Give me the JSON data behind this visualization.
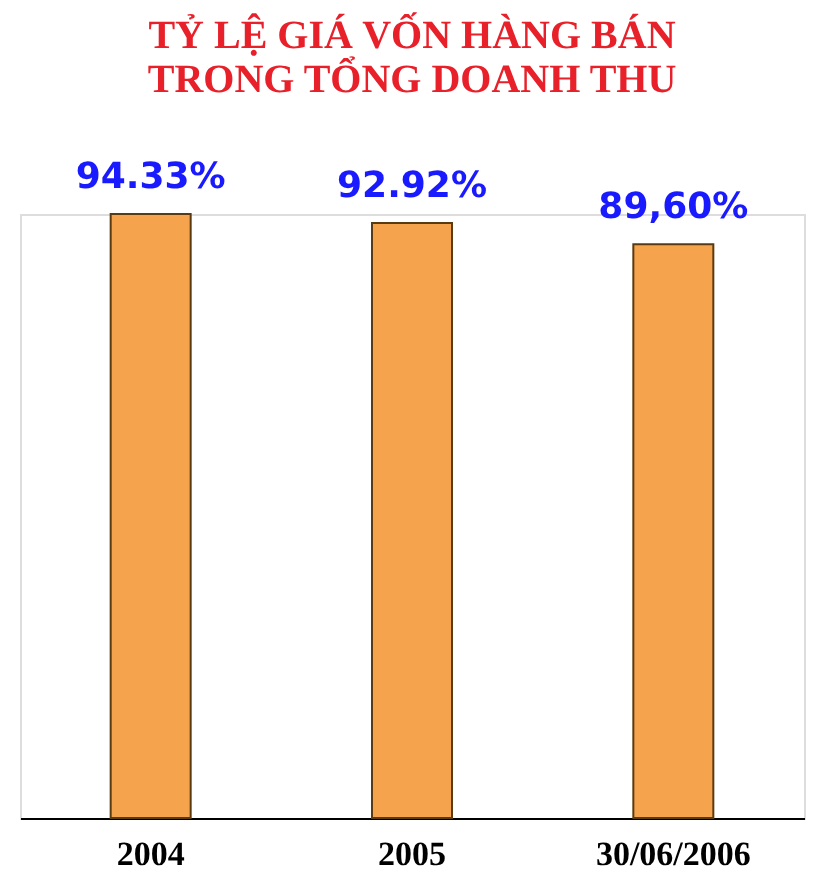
{
  "chart_data": {
    "type": "bar",
    "title": "TỶ LỆ GIÁ VỐN HÀNG BÁN\nTRONG TỔNG DOANH THU",
    "categories": [
      "2004",
      "2005",
      "30/06/2006"
    ],
    "values": [
      94.33,
      92.92,
      89.6
    ],
    "value_labels": [
      "94.33%",
      "92.92%",
      "89,60%"
    ],
    "color": "#f5a34c",
    "grid": false
  }
}
